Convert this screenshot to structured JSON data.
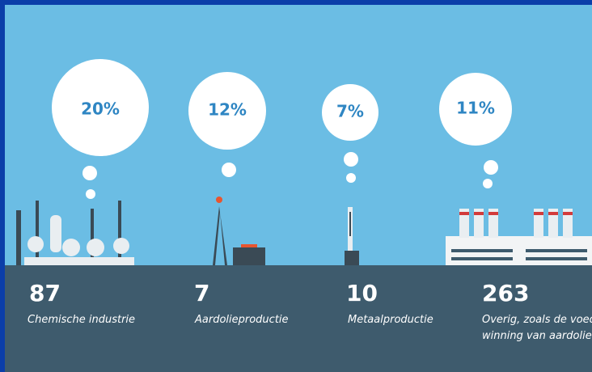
{
  "items": [
    {
      "share": "20%",
      "count": 87,
      "label": "Chemische industrie"
    },
    {
      "share": "12%",
      "count": 7,
      "label": "Aardolieproductie"
    },
    {
      "share": "7%",
      "count": 10,
      "label": "Metaalproductie"
    },
    {
      "share": "11%",
      "count": 263,
      "label": "Overig, zoals de voedi",
      "label2": "winning van aardolie"
    }
  ]
}
